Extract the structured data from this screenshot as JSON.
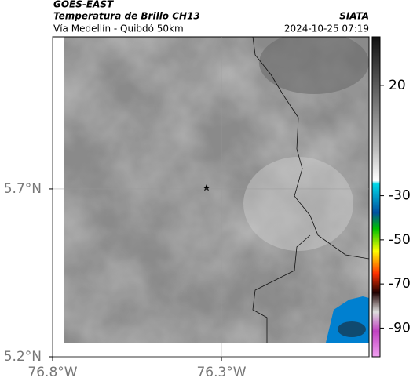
{
  "header": {
    "source": "GOES-EAST",
    "product": "Temperatura de Brillo CH13",
    "agency": "SIATA",
    "region": "Vía Medellín - Quibdó 50km",
    "timestamp": "2024-10-25 07:19"
  },
  "map": {
    "xlim": [
      -76.8,
      -75.863
    ],
    "ylim": [
      5.2,
      6.153
    ],
    "xticks": [
      {
        "value": -76.8,
        "label": "76.8°W"
      },
      {
        "value": -76.3,
        "label": "76.3°W"
      }
    ],
    "yticks": [
      {
        "value": 5.7,
        "label": "5.7°N"
      },
      {
        "value": 5.2,
        "label": "5.2°N"
      }
    ]
  },
  "colorbar": {
    "lim": [
      42,
      -103
    ],
    "ticks": [
      20,
      -30,
      -50,
      -70,
      -90
    ]
  }
}
